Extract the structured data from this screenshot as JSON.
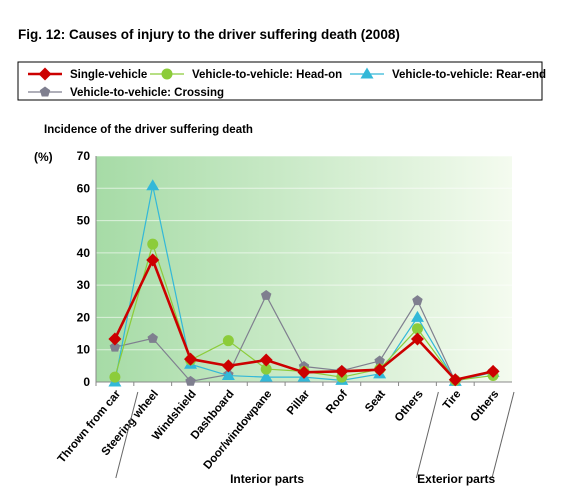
{
  "chart_data": {
    "type": "line",
    "title": "Fig. 12: Causes of injury to the driver suffering death (2008)",
    "subtitle": "Incidence of the driver suffering death",
    "ylabel": "(%)",
    "ylim": [
      0,
      70
    ],
    "yticks": [
      0,
      10,
      20,
      30,
      40,
      50,
      60,
      70
    ],
    "legend_position": "top",
    "categories": [
      "Thrown from car",
      "Steering wheel",
      "Windshield",
      "Dashboard",
      "Door/windowpane",
      "Pillar",
      "Roof",
      "Seat",
      "Others",
      "Tire",
      "Others"
    ],
    "groups": [
      {
        "label": "Interior parts",
        "start": 1,
        "end": 8
      },
      {
        "label": "Exterior parts",
        "start": 9,
        "end": 10
      }
    ],
    "background_gradient": [
      "#a6dba6",
      "#f4fbef"
    ],
    "series": [
      {
        "name": "Single-vehicle",
        "color": "#cc0000",
        "marker": "diamond",
        "values": [
          13.3,
          37.8,
          7.1,
          5.0,
          6.8,
          3.0,
          3.3,
          3.8,
          13.3,
          0.7,
          3.3
        ]
      },
      {
        "name": "Vehicle-to-vehicle: Head-on",
        "color": "#8ccc3a",
        "marker": "circle",
        "values": [
          1.5,
          42.7,
          6.8,
          12.8,
          4.0,
          3.3,
          1.5,
          4.0,
          16.5,
          0.5,
          2.0
        ]
      },
      {
        "name": "Vehicle-to-vehicle: Rear-end",
        "color": "#33b8d8",
        "marker": "triangle",
        "values": [
          0.0,
          60.8,
          5.5,
          2.0,
          1.5,
          1.5,
          0.5,
          2.5,
          20.0,
          0.2,
          3.0
        ]
      },
      {
        "name": "Vehicle-to-vehicle: Crossing",
        "color": "#7f7f8f",
        "marker": "pentagon",
        "values": [
          10.8,
          13.5,
          0.2,
          2.3,
          26.8,
          4.8,
          3.5,
          6.5,
          25.2,
          0.2,
          3.3
        ]
      }
    ]
  }
}
